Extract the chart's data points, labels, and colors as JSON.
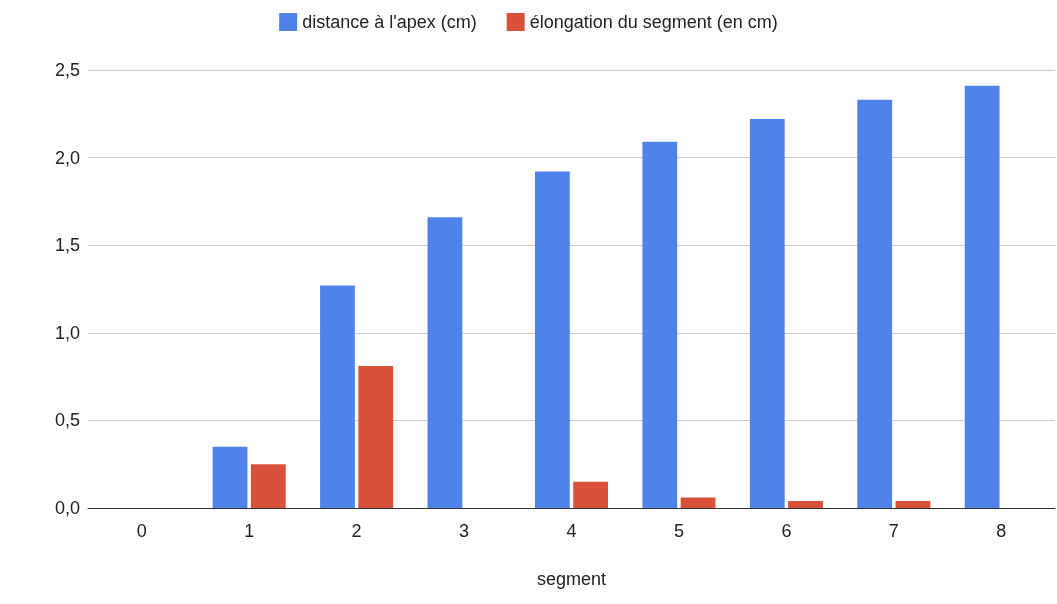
{
  "chart_data": {
    "type": "bar",
    "xlabel": "segment",
    "categories": [
      "0",
      "1",
      "2",
      "3",
      "4",
      "5",
      "6",
      "7",
      "8"
    ],
    "series": [
      {
        "name": "distance à l'apex (cm)",
        "color": "#4f83ea",
        "values": [
          0,
          0.35,
          1.27,
          1.66,
          1.92,
          2.09,
          2.22,
          2.33,
          2.41
        ]
      },
      {
        "name": "élongation du segment (en cm)",
        "color": "#d9503b",
        "values": [
          0,
          0.25,
          0.81,
          0,
          0.15,
          0.06,
          0.04,
          0.04,
          0
        ]
      }
    ],
    "ylim": [
      0,
      2.5
    ],
    "yticks": [
      {
        "value": 0,
        "label": "0,0"
      },
      {
        "value": 0.5,
        "label": "0,5"
      },
      {
        "value": 1,
        "label": "1,0"
      },
      {
        "value": 1.5,
        "label": "1,5"
      },
      {
        "value": 2,
        "label": "2,0"
      },
      {
        "value": 2.5,
        "label": "2,5"
      }
    ],
    "grid": "y",
    "legend": "top"
  }
}
